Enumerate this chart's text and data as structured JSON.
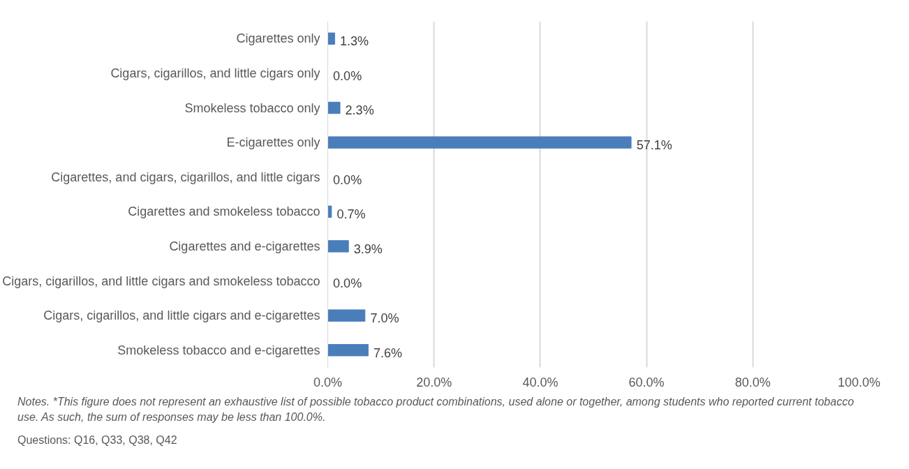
{
  "chart_data": {
    "type": "bar",
    "orientation": "horizontal",
    "categories": [
      "Cigarettes only",
      "Cigars, cigarillos, and little cigars only",
      "Smokeless tobacco only",
      "E-cigarettes only",
      "Cigarettes, and cigars, cigarillos, and little cigars",
      "Cigarettes and smokeless tobacco",
      "Cigarettes and e-cigarettes",
      "Cigars, cigarillos, and little cigars and smokeless tobacco",
      "Cigars, cigarillos, and little cigars and e-cigarettes",
      "Smokeless tobacco and e-cigarettes"
    ],
    "values": [
      1.3,
      0.0,
      2.3,
      57.1,
      0.0,
      0.7,
      3.9,
      0.0,
      7.0,
      7.6
    ],
    "value_labels": [
      "1.3%",
      "0.0%",
      "2.3%",
      "57.1%",
      "0.0%",
      "0.7%",
      "3.9%",
      "0.0%",
      "7.0%",
      "7.6%"
    ],
    "color": "#4a7ebb",
    "xlim": [
      0,
      100
    ],
    "xticks": [
      {
        "value": 0,
        "label": "0.0%"
      },
      {
        "value": 20,
        "label": "20.0%"
      },
      {
        "value": 40,
        "label": "40.0%"
      },
      {
        "value": 60,
        "label": "60.0%"
      },
      {
        "value": 80,
        "label": "80.0%"
      },
      {
        "value": 100,
        "label": "100.0%"
      }
    ],
    "grid": "x",
    "annotations": [
      "Notes. *This figure does not represent an exhaustive list of possible tobacco product combinations, used alone or together, among students who reported current tobacco use. As such, the sum of responses may be less than 100.0%.",
      "Questions: Q16, Q33, Q38, Q42"
    ]
  }
}
